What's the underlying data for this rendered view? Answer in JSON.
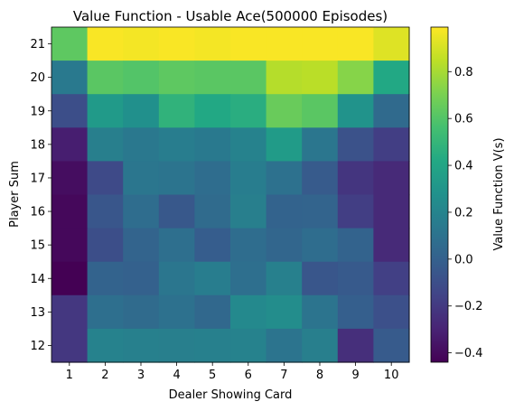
{
  "chart_data": {
    "type": "heatmap",
    "title": "Value Function - Usable Ace(500000 Episodes)",
    "xlabel": "Dealer Showing Card",
    "ylabel": "Player Sum",
    "x": [
      1,
      2,
      3,
      4,
      5,
      6,
      7,
      8,
      9,
      10
    ],
    "x_tick_labels": [
      "1",
      "2",
      "3",
      "4",
      "5",
      "6",
      "7",
      "8",
      "9",
      "10"
    ],
    "y": [
      21,
      20,
      19,
      18,
      17,
      16,
      15,
      14,
      13,
      12
    ],
    "y_tick_labels": [
      "21",
      "20",
      "19",
      "18",
      "17",
      "16",
      "15",
      "14",
      "13",
      "12"
    ],
    "values": [
      [
        0.63,
        0.98,
        0.97,
        0.98,
        0.97,
        0.98,
        0.98,
        0.98,
        0.98,
        0.92
      ],
      [
        0.14,
        0.62,
        0.6,
        0.63,
        0.62,
        0.62,
        0.83,
        0.84,
        0.73,
        0.42
      ],
      [
        -0.1,
        0.33,
        0.27,
        0.48,
        0.42,
        0.45,
        0.66,
        0.62,
        0.29,
        0.05
      ],
      [
        -0.32,
        0.17,
        0.13,
        0.16,
        0.14,
        0.19,
        0.34,
        0.12,
        -0.08,
        -0.18
      ],
      [
        -0.39,
        -0.12,
        0.12,
        0.11,
        0.07,
        0.16,
        0.09,
        -0.03,
        -0.22,
        -0.27
      ],
      [
        -0.41,
        -0.06,
        0.07,
        -0.05,
        0.06,
        0.17,
        0.01,
        0.02,
        -0.18,
        -0.27
      ],
      [
        -0.41,
        -0.1,
        0.02,
        0.08,
        -0.02,
        0.07,
        0.03,
        0.07,
        0.01,
        -0.27
      ],
      [
        -0.44,
        0.01,
        0.0,
        0.12,
        0.16,
        0.08,
        0.18,
        -0.06,
        -0.04,
        -0.17
      ],
      [
        -0.21,
        0.08,
        0.06,
        0.09,
        0.04,
        0.23,
        0.25,
        0.11,
        -0.01,
        -0.09
      ],
      [
        -0.21,
        0.19,
        0.18,
        0.17,
        0.18,
        0.19,
        0.11,
        0.17,
        -0.25,
        -0.03
      ]
    ],
    "colorbar": {
      "label": "Value Function V(s)",
      "range": [
        -0.44,
        0.99
      ],
      "ticks": [
        -0.4,
        -0.2,
        0.0,
        0.2,
        0.4,
        0.6,
        0.8
      ],
      "tick_labels": [
        "−0.4",
        "−0.2",
        "0.0",
        "0.2",
        "0.4",
        "0.6",
        "0.8"
      ],
      "colormap": "viridis"
    },
    "grid": false
  }
}
